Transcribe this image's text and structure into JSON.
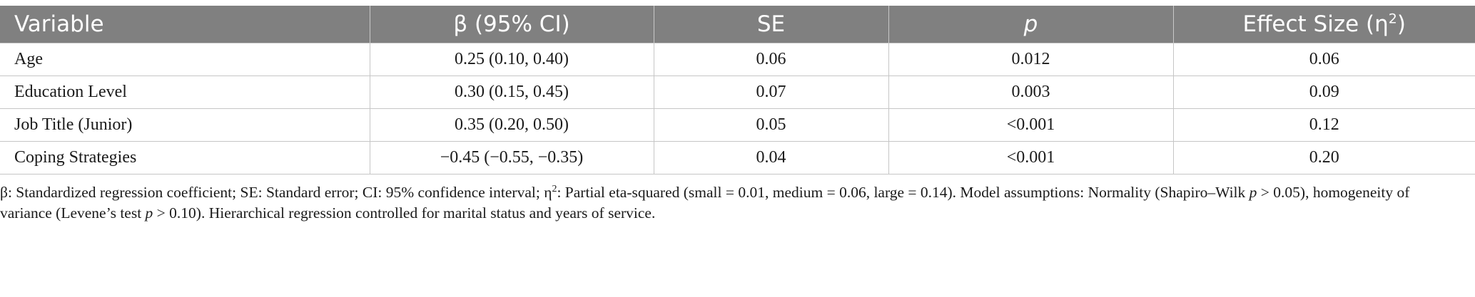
{
  "table": {
    "headers": {
      "variable": "Variable",
      "beta": "β (95% CI)",
      "se": "SE",
      "p": "p",
      "effect_prefix": "Effect Size (η",
      "effect_sup": "2",
      "effect_suffix": ")"
    },
    "rows": [
      {
        "variable": "Age",
        "beta": "0.25 (0.10, 0.40)",
        "se": "0.06",
        "p": "0.012",
        "effect": "0.06"
      },
      {
        "variable": "Education Level",
        "beta": "0.30 (0.15, 0.45)",
        "se": "0.07",
        "p": "0.003",
        "effect": "0.09"
      },
      {
        "variable": "Job Title (Junior)",
        "beta": "0.35 (0.20, 0.50)",
        "se": "0.05",
        "p": "<0.001",
        "effect": "0.12"
      },
      {
        "variable": "Coping Strategies",
        "beta": "−0.45 (−0.55, −0.35)",
        "se": "0.04",
        "p": "<0.001",
        "effect": "0.20"
      }
    ]
  },
  "footnote": {
    "part1": "β: Standardized regression coefficient; SE: Standard error; CI: 95% confidence interval; η",
    "sup": "2",
    "part2": ": Partial eta-squared (small = 0.01, medium = 0.06, large = 0.14). Model assumptions: Normality (Shapiro–Wilk ",
    "p1": "p",
    "part3": " > 0.05), homogeneity of variance (Levene’s test ",
    "p2": "p",
    "part4": " > 0.10). Hierarchical regression controlled for marital status and years of service."
  }
}
